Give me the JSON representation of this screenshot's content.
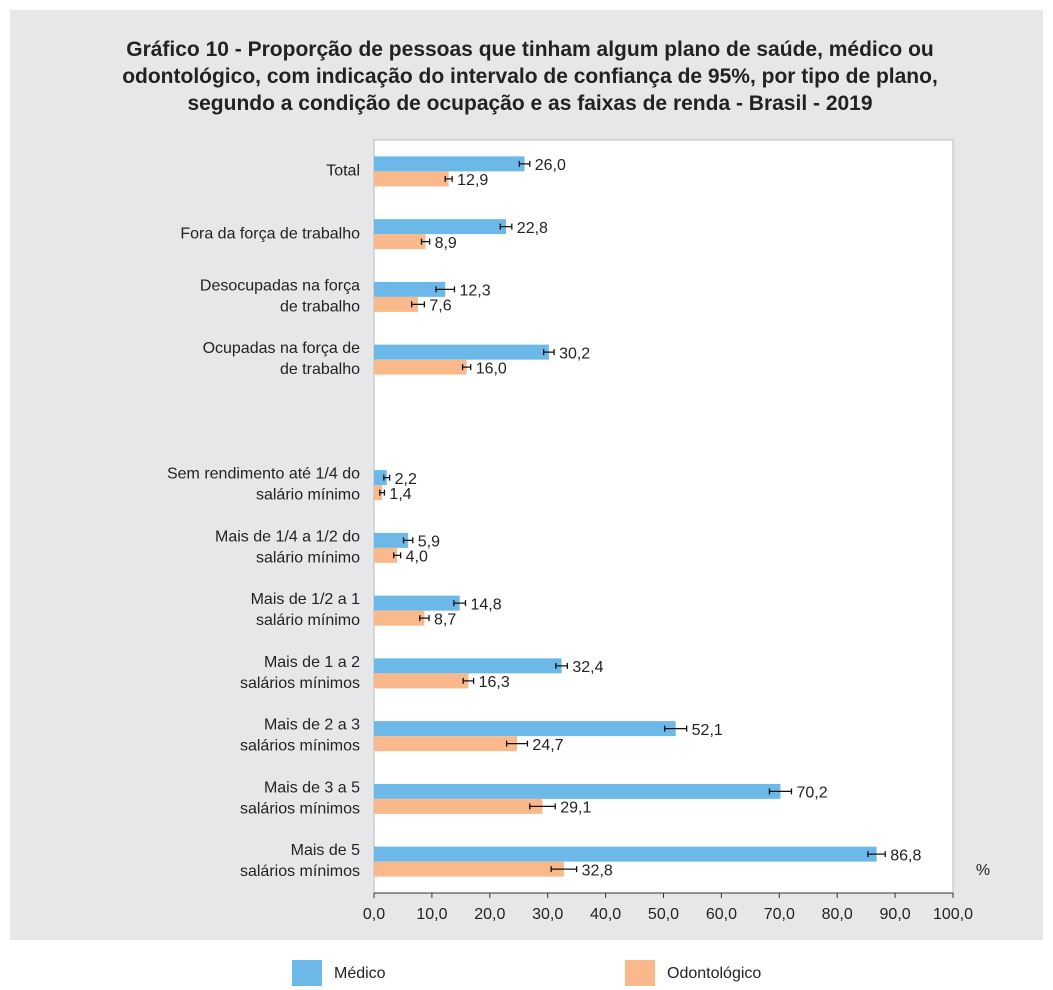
{
  "chart_data": {
    "type": "bar",
    "orientation": "horizontal",
    "title": "Gráfico 10 - Proporção de pessoas que tinham algum plano de saúde, médico ou\nodontológico, com indicação do intervalo de confiança de 95%, por tipo de plano,\nsegundo a condição de ocupação e as faixas de renda - Brasil - 2019",
    "x_label": "%",
    "categories": [
      "Total",
      "Fora da força de trabalho",
      "Desocupadas na força\nde trabalho",
      "Ocupadas na força de\nde trabalho",
      null,
      "Sem rendimento até 1/4 do\nsalário mínimo",
      "Mais de 1/4 a 1/2 do\nsalário mínimo",
      "Mais de 1/2 a 1\nsalário mínimo",
      "Mais de 1 a 2\nsalários mínimos",
      "Mais de 2 a 3\nsalários mínimos",
      "Mais de 3 a 5\nsalários mínimos",
      "Mais de 5\nsalários mínimos"
    ],
    "series": [
      {
        "name": "Médico",
        "color": "#6cb8e8",
        "values": [
          26.0,
          22.8,
          12.3,
          30.2,
          null,
          2.2,
          5.9,
          14.8,
          32.4,
          52.1,
          70.2,
          86.8
        ],
        "value_labels": [
          "26,0",
          "22,8",
          "12,3",
          "30,2",
          null,
          "2,2",
          "5,9",
          "14,8",
          "32,4",
          "52,1",
          "70,2",
          "86,8"
        ],
        "errors": [
          0.9,
          1.0,
          1.6,
          0.9,
          null,
          0.5,
          0.8,
          1.0,
          1.0,
          1.9,
          1.9,
          1.5
        ]
      },
      {
        "name": "Odontológico",
        "color": "#f9b98a",
        "values": [
          12.9,
          8.9,
          7.6,
          16.0,
          null,
          1.4,
          4.0,
          8.7,
          16.3,
          24.7,
          29.1,
          32.8
        ],
        "value_labels": [
          "12,9",
          "8,9",
          "7,6",
          "16,0",
          null,
          "1,4",
          "4,0",
          "8,7",
          "16,3",
          "24,7",
          "29,1",
          "32,8"
        ],
        "errors": [
          0.6,
          0.7,
          1.1,
          0.7,
          null,
          0.4,
          0.6,
          0.8,
          0.9,
          1.8,
          2.2,
          2.2
        ]
      }
    ],
    "xlim": [
      0,
      100
    ],
    "xticks": [
      {
        "value": 0,
        "label": "0,0"
      },
      {
        "value": 10,
        "label": "10,0"
      },
      {
        "value": 20,
        "label": "20,0"
      },
      {
        "value": 30,
        "label": "30,0"
      },
      {
        "value": 40,
        "label": "40,0"
      },
      {
        "value": 50,
        "label": "50,0"
      },
      {
        "value": 60,
        "label": "60,0"
      },
      {
        "value": 70,
        "label": "70,0"
      },
      {
        "value": 80,
        "label": "80,0"
      },
      {
        "value": 90,
        "label": "90,0"
      },
      {
        "value": 100,
        "label": "100,0"
      }
    ],
    "legend": "bottom"
  }
}
